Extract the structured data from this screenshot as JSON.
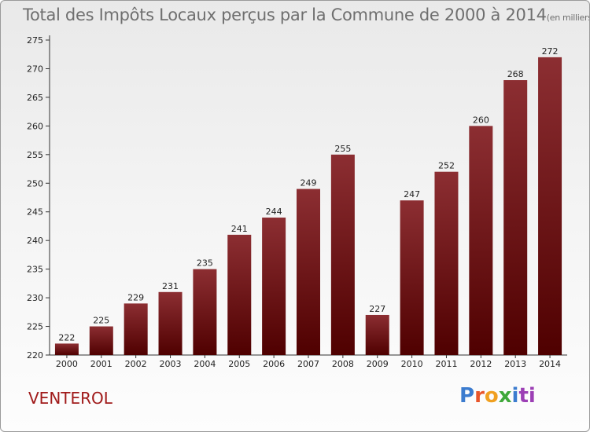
{
  "chart_data": {
    "type": "bar",
    "title": "Total des Impôts Locaux perçus par la Commune de 2000 à 2014",
    "unit_note": "(en milliers d'€)",
    "categories": [
      "2000",
      "2001",
      "2002",
      "2003",
      "2004",
      "2005",
      "2006",
      "2007",
      "2008",
      "2009",
      "2010",
      "2011",
      "2012",
      "2013",
      "2014"
    ],
    "values": [
      222,
      225,
      229,
      231,
      235,
      241,
      244,
      249,
      255,
      227,
      247,
      252,
      260,
      268,
      272
    ],
    "ylim": [
      220,
      275
    ],
    "yticks": [
      220,
      225,
      230,
      235,
      240,
      245,
      250,
      255,
      260,
      265,
      270,
      275
    ],
    "xlabel": "",
    "ylabel": "",
    "grid": false,
    "bar_color_top": "#8c2e32",
    "bar_color_bottom": "#4f0000"
  },
  "commune_name": "VENTEROL",
  "logo": {
    "letters": [
      "P",
      "r",
      "o",
      "x",
      "i",
      "ti"
    ],
    "colors": [
      "#3c7ccf",
      "#e8552a",
      "#f0a020",
      "#3fa83a",
      "#3c7ccf",
      "#9c3fb5"
    ]
  }
}
